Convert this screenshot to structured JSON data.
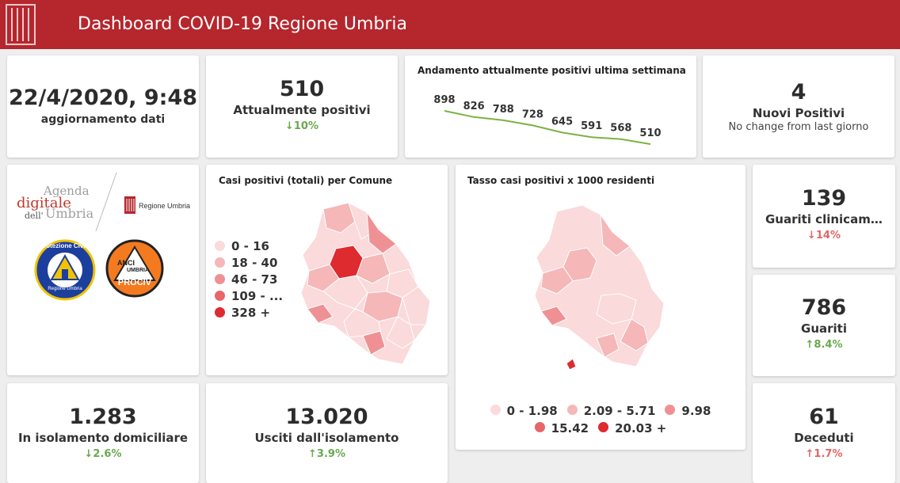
{
  "header": {
    "title": "Dashboard COVID-19 Regione Umbria",
    "logo_icon": "regione-umbria-logo-icon"
  },
  "update": {
    "datetime": "22/4/2020, 9:48",
    "label": "aggiornamento dati"
  },
  "positivi": {
    "value": "510",
    "label": "Attualmente positivi",
    "change": "10%",
    "direction": "down"
  },
  "trend": {
    "title": "Andamento attualmente positivi ultima settimana",
    "chart_data": {
      "type": "line",
      "values": [
        898,
        826,
        788,
        728,
        645,
        591,
        568,
        510
      ],
      "labels": [
        "898",
        "826",
        "788",
        "728",
        "645",
        "591",
        "568",
        "510"
      ],
      "color": "#7cb342"
    }
  },
  "nuovi": {
    "value": "4",
    "label": "Nuovi Positivi",
    "note": "No change from last giorno"
  },
  "logos": {
    "agenda_line1": "Agenda",
    "agenda_line2": "digitale",
    "agenda_line3": "dell'",
    "agenda_line4": "Umbria",
    "regione": "Regione Umbria",
    "protezione_top": "Protezione Civile",
    "protezione_bottom": "Regione Umbria",
    "anci_line1": "ANCI",
    "anci_line2": "UMBRIA",
    "anci_line3": "PROCIV"
  },
  "map1": {
    "title": "Casi positivi (totali) per Comune",
    "legend": [
      {
        "label": "0 - 16",
        "color": "#fadadb"
      },
      {
        "label": "18 - 40",
        "color": "#f5b7b8"
      },
      {
        "label": "46 - 73",
        "color": "#ef9194"
      },
      {
        "label": "109 - ...",
        "color": "#e76669"
      },
      {
        "label": "328 +",
        "color": "#dd2b2f"
      }
    ]
  },
  "map2": {
    "title": "Tasso casi positivi x 1000 residenti",
    "legend": [
      {
        "label": "0 - 1.98",
        "color": "#fadadb"
      },
      {
        "label": "2.09 - 5.71",
        "color": "#f5b7b8"
      },
      {
        "label": "9.98",
        "color": "#ef9194"
      },
      {
        "label": "15.42",
        "color": "#e76669"
      },
      {
        "label": "20.03 +",
        "color": "#dd2b2f"
      }
    ]
  },
  "guariti_clinici": {
    "value": "139",
    "label": "Guariti clinicamente",
    "change": "14%",
    "direction": "down"
  },
  "guariti": {
    "value": "786",
    "label": "Guariti",
    "change": "8.4%",
    "direction": "up"
  },
  "deceduti": {
    "value": "61",
    "label": "Deceduti",
    "change": "1.7%",
    "direction": "up"
  },
  "isolamento": {
    "value": "1.283",
    "label": "In isolamento domiciliare",
    "change": "2.6%",
    "direction": "down"
  },
  "usciti": {
    "value": "13.020",
    "label": "Usciti dall'isolamento",
    "change": "3.9%",
    "direction": "up"
  },
  "colors": {
    "header": "#b5262d",
    "up_good": "#6aa84f",
    "up_bad": "#e06666"
  }
}
